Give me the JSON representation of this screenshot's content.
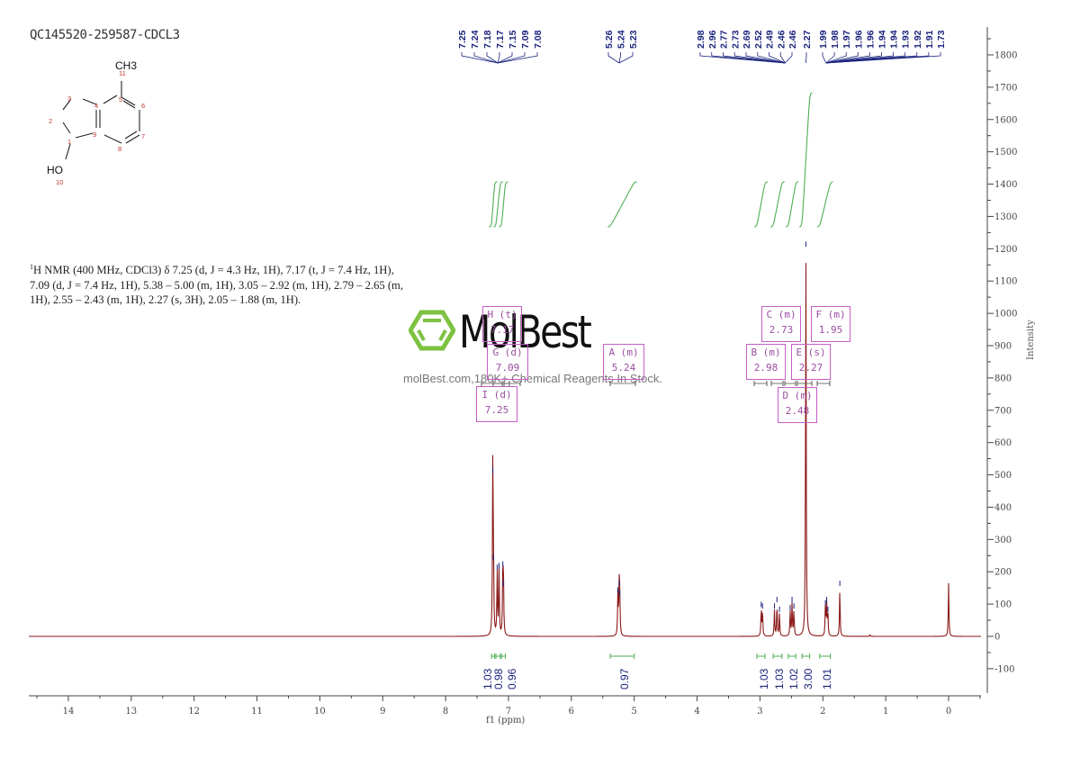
{
  "sample_title": "QC145520-259587-CDCL3",
  "structure": {
    "substituent": "CH3",
    "hydroxyl": "HO",
    "atom_labels": [
      "1",
      "2",
      "3",
      "4",
      "5",
      "6",
      "7",
      "8",
      "9",
      "10",
      "11"
    ]
  },
  "nmr_description": {
    "prefix_sup": "1",
    "text": "H NMR (400 MHz, CDCl3) δ 7.25 (d, J = 4.3 Hz, 1H), 7.17 (t, J = 7.4 Hz, 1H), 7.09 (d, J = 7.4 Hz, 1H), 5.38 – 5.00 (m, 1H), 3.05 – 2.92 (m, 1H), 2.79 – 2.65 (m, 1H), 2.55 – 2.43 (m, 1H), 2.27 (s, 3H), 2.05 – 1.88 (m, 1H)."
  },
  "watermark": {
    "brand": "MolBest",
    "tagline": "molBest.com,180K+ Chemical Reagents In Stock."
  },
  "colors": {
    "spectrum": "#8b1a1a",
    "integral": "#4caf50",
    "peak_label": "#1a237e",
    "multiplet_box": "#c55ec8",
    "axis": "#444444",
    "logo_green": "#7dc242"
  },
  "chart_data": {
    "type": "line",
    "title": "QC145520-259587-CDCL3",
    "xlabel": "f1 (ppm)",
    "ylabel": "Intensity",
    "xlim": [
      14.7,
      -0.5
    ],
    "ylim": [
      -170,
      1870
    ],
    "x_ticks": [
      14,
      13,
      12,
      11,
      10,
      9,
      8,
      7,
      6,
      5,
      4,
      3,
      2,
      1,
      0
    ],
    "y_ticks": [
      -100,
      0,
      100,
      200,
      300,
      400,
      500,
      600,
      700,
      800,
      900,
      1000,
      1100,
      1200,
      1300,
      1400,
      1500,
      1600,
      1700,
      1800
    ],
    "peak_labels": [
      "7.25",
      "7.24",
      "7.18",
      "7.17",
      "7.15",
      "7.09",
      "7.08",
      "5.26",
      "5.24",
      "5.23",
      "2.98",
      "2.96",
      "2.77",
      "2.73",
      "2.69",
      "2.52",
      "2.49",
      "2.46",
      "2.46",
      "2.27",
      "1.99",
      "1.98",
      "1.97",
      "1.96",
      "1.96",
      "1.94",
      "1.94",
      "1.93",
      "1.92",
      "1.91",
      "1.73"
    ],
    "peaks": [
      {
        "ppm": 7.25,
        "intensity": 500
      },
      {
        "ppm": 7.24,
        "intensity": 230
      },
      {
        "ppm": 7.18,
        "intensity": 200
      },
      {
        "ppm": 7.15,
        "intensity": 205
      },
      {
        "ppm": 7.09,
        "intensity": 210
      },
      {
        "ppm": 7.08,
        "intensity": 150
      },
      {
        "ppm": 5.26,
        "intensity": 130
      },
      {
        "ppm": 5.24,
        "intensity": 150
      },
      {
        "ppm": 5.23,
        "intensity": 120
      },
      {
        "ppm": 2.98,
        "intensity": 85
      },
      {
        "ppm": 2.96,
        "intensity": 80
      },
      {
        "ppm": 2.77,
        "intensity": 80
      },
      {
        "ppm": 2.73,
        "intensity": 100
      },
      {
        "ppm": 2.69,
        "intensity": 70
      },
      {
        "ppm": 2.52,
        "intensity": 75
      },
      {
        "ppm": 2.49,
        "intensity": 100
      },
      {
        "ppm": 2.46,
        "intensity": 80
      },
      {
        "ppm": 2.27,
        "intensity": 1200
      },
      {
        "ppm": 1.96,
        "intensity": 90
      },
      {
        "ppm": 1.94,
        "intensity": 100
      },
      {
        "ppm": 1.92,
        "intensity": 70
      },
      {
        "ppm": 1.73,
        "intensity": 150
      },
      {
        "ppm": 1.25,
        "intensity": 5
      },
      {
        "ppm": 0.0,
        "intensity": 165
      }
    ],
    "multiplets": [
      {
        "id": "I",
        "type": "d",
        "shift": "7.25"
      },
      {
        "id": "H",
        "type": "t",
        "shift": "7.17"
      },
      {
        "id": "G",
        "type": "d",
        "shift": "7.09"
      },
      {
        "id": "A",
        "type": "m",
        "shift": "5.24"
      },
      {
        "id": "B",
        "type": "m",
        "shift": "2.98"
      },
      {
        "id": "C",
        "type": "m",
        "shift": "2.73"
      },
      {
        "id": "D",
        "type": "m",
        "shift": "2.48"
      },
      {
        "id": "E",
        "type": "s",
        "shift": "2.27"
      },
      {
        "id": "F",
        "type": "m",
        "shift": "1.95"
      }
    ],
    "integrals": [
      {
        "from": 7.27,
        "to": 7.22,
        "value": "1.03"
      },
      {
        "from": 7.2,
        "to": 7.13,
        "value": "0.98"
      },
      {
        "from": 7.11,
        "to": 7.05,
        "value": "0.96"
      },
      {
        "from": 5.38,
        "to": 5.0,
        "value": "0.97"
      },
      {
        "from": 3.05,
        "to": 2.92,
        "value": "1.03"
      },
      {
        "from": 2.79,
        "to": 2.65,
        "value": "1.03"
      },
      {
        "from": 2.55,
        "to": 2.43,
        "value": "1.02"
      },
      {
        "from": 2.33,
        "to": 2.21,
        "value": "3.00"
      },
      {
        "from": 2.05,
        "to": 1.88,
        "value": "1.01"
      }
    ]
  }
}
